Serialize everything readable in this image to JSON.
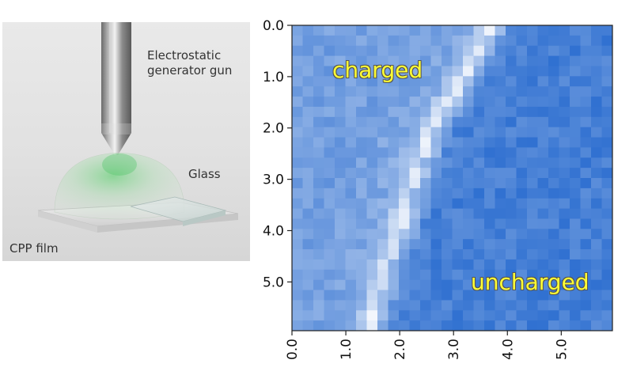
{
  "illustration": {
    "gun_label_line1": "Electrostatic",
    "gun_label_line2": "generator gun",
    "glass_label": "Glass",
    "film_label": "CPP film"
  },
  "overlay": {
    "charged": "charged",
    "uncharged": "uncharged"
  },
  "chart_data": {
    "type": "heatmap",
    "title": "",
    "xlabel": "",
    "ylabel": "",
    "xlim": [
      0.0,
      5.95
    ],
    "ylim": [
      0.0,
      5.95
    ],
    "x_ticks": [
      "0.0",
      "1.0",
      "2.0",
      "3.0",
      "4.0",
      "5.0"
    ],
    "y_ticks": [
      "0.0",
      "1.0",
      "2.0",
      "3.0",
      "4.0",
      "5.0"
    ],
    "y_axis_inverted": true,
    "grid_cells": [
      30,
      30
    ],
    "colormap": [
      "#2e6fd0",
      "#ffffff"
    ],
    "regions": [
      "charged",
      "uncharged"
    ]
  }
}
